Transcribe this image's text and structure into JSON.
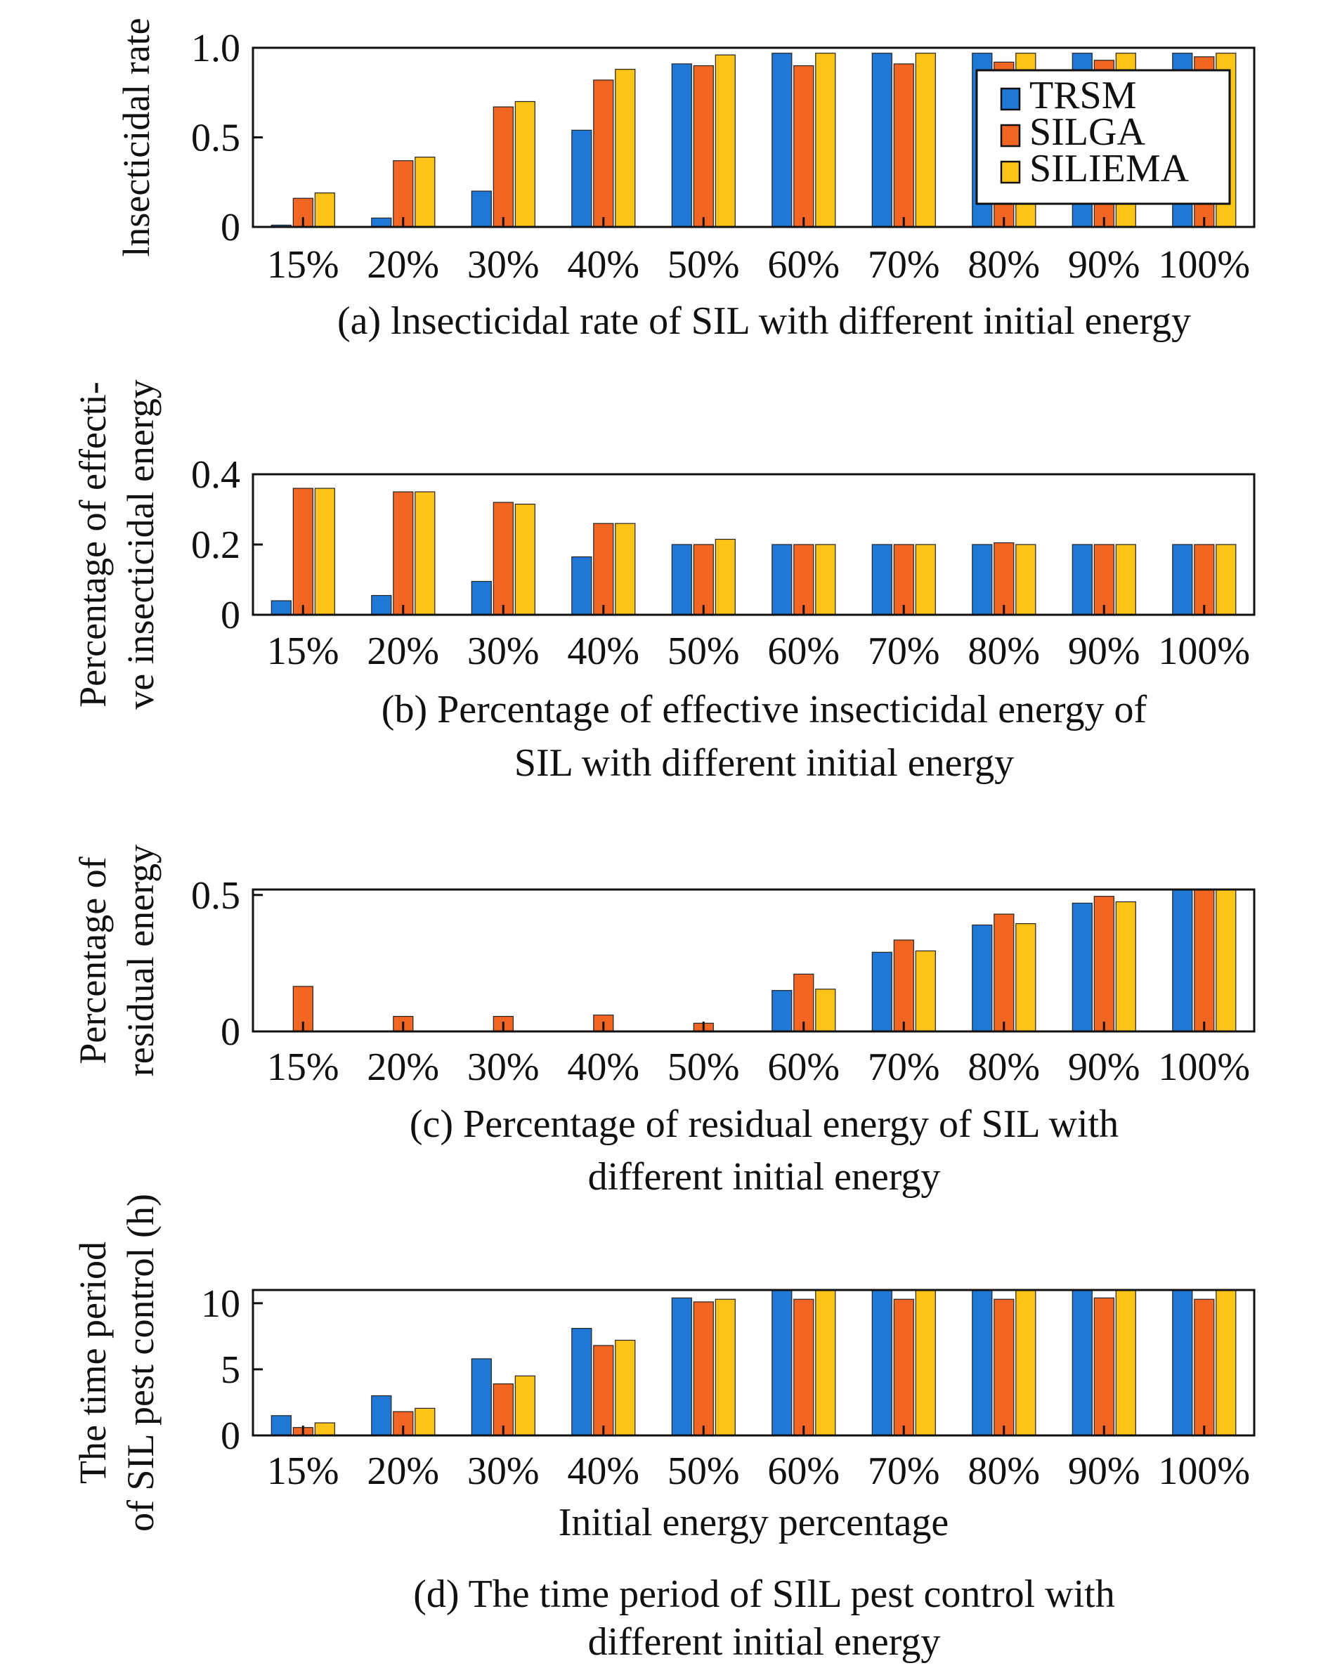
{
  "series_meta": [
    {
      "name": "TRSM",
      "color": "#1f78d6"
    },
    {
      "name": "SILGA",
      "color": "#f26522"
    },
    {
      "name": "SILIEMA",
      "color": "#fcc419"
    }
  ],
  "chart_data": [
    {
      "type": "bar",
      "categories": [
        "15%",
        "20%",
        "30%",
        "40%",
        "50%",
        "60%",
        "70%",
        "80%",
        "90%",
        "100%"
      ],
      "ylabel_lines": [
        "lnsecticidal rate"
      ],
      "caption_lines": [
        "(a) lnsecticidal rate of SIL with different initial energy"
      ],
      "xlabel": "",
      "ylim": [
        0,
        1.0
      ],
      "yticks": [
        0,
        0.5,
        1.0
      ],
      "ytick_labels": [
        "0",
        "0.5",
        "1.0"
      ],
      "legend": {
        "placement": "top-right",
        "entries": [
          "TRSM",
          "SILGA",
          "SILIEMA"
        ]
      },
      "series": [
        {
          "name": "TRSM",
          "values": [
            0.01,
            0.05,
            0.2,
            0.54,
            0.91,
            0.97,
            0.97,
            0.97,
            0.97,
            0.97
          ]
        },
        {
          "name": "SILGA",
          "values": [
            0.16,
            0.37,
            0.67,
            0.82,
            0.9,
            0.9,
            0.91,
            0.92,
            0.93,
            0.95
          ]
        },
        {
          "name": "SILIEMA",
          "values": [
            0.19,
            0.39,
            0.7,
            0.88,
            0.96,
            0.97,
            0.97,
            0.97,
            0.97,
            0.97
          ]
        }
      ]
    },
    {
      "type": "bar",
      "categories": [
        "15%",
        "20%",
        "30%",
        "40%",
        "50%",
        "60%",
        "70%",
        "80%",
        "90%",
        "100%"
      ],
      "ylabel_lines": [
        "Percentage of effecti-",
        "ve insecticidal energy"
      ],
      "caption_lines": [
        "(b) Percentage of effective insecticidal energy of",
        "SIL with different initial energy"
      ],
      "xlabel": "",
      "ylim": [
        0,
        0.4
      ],
      "yticks": [
        0,
        0.2,
        0.4
      ],
      "ytick_labels": [
        "0",
        "0.2",
        "0.4"
      ],
      "series": [
        {
          "name": "TRSM",
          "values": [
            0.04,
            0.055,
            0.095,
            0.165,
            0.2,
            0.2,
            0.2,
            0.2,
            0.2,
            0.2
          ]
        },
        {
          "name": "SILGA",
          "values": [
            0.36,
            0.35,
            0.32,
            0.26,
            0.2,
            0.2,
            0.2,
            0.205,
            0.2,
            0.2
          ]
        },
        {
          "name": "SILIEMA",
          "values": [
            0.36,
            0.35,
            0.315,
            0.26,
            0.215,
            0.2,
            0.2,
            0.2,
            0.2,
            0.2
          ]
        }
      ]
    },
    {
      "type": "bar",
      "categories": [
        "15%",
        "20%",
        "30%",
        "40%",
        "50%",
        "60%",
        "70%",
        "80%",
        "90%",
        "100%"
      ],
      "ylabel_lines": [
        "Percentage of",
        "residual energy"
      ],
      "caption_lines": [
        "(c) Percentage of residual energy of SIL with",
        "different initial energy"
      ],
      "xlabel": "",
      "ylim": [
        0,
        0.52
      ],
      "yticks": [
        0,
        0.5
      ],
      "ytick_labels": [
        "0",
        "0.5"
      ],
      "series": [
        {
          "name": "TRSM",
          "values": [
            0,
            0,
            0,
            0,
            0,
            0.15,
            0.29,
            0.39,
            0.47,
            0.53
          ]
        },
        {
          "name": "SILGA",
          "values": [
            0.165,
            0.055,
            0.055,
            0.06,
            0.03,
            0.21,
            0.335,
            0.43,
            0.495,
            0.535
          ]
        },
        {
          "name": "SILIEMA",
          "values": [
            0,
            0,
            0,
            0,
            0,
            0.155,
            0.295,
            0.395,
            0.475,
            0.53
          ]
        }
      ]
    },
    {
      "type": "bar",
      "categories": [
        "15%",
        "20%",
        "30%",
        "40%",
        "50%",
        "60%",
        "70%",
        "80%",
        "90%",
        "100%"
      ],
      "ylabel_lines": [
        "The time period",
        "of SIL pest control (h)"
      ],
      "caption_lines": [
        "(d) The time period of SIlL pest control with",
        "different initial energy"
      ],
      "xlabel": "Initial energy percentage",
      "ylim": [
        0,
        11
      ],
      "yticks": [
        0,
        5,
        10
      ],
      "ytick_labels": [
        "0",
        "5",
        "10"
      ],
      "series": [
        {
          "name": "TRSM",
          "values": [
            1.5,
            3.0,
            5.8,
            8.1,
            10.4,
            11,
            11,
            11,
            11,
            11
          ]
        },
        {
          "name": "SILGA",
          "values": [
            0.6,
            1.8,
            3.9,
            6.8,
            10.1,
            10.3,
            10.3,
            10.3,
            10.4,
            10.3
          ]
        },
        {
          "name": "SILIEMA",
          "values": [
            0.95,
            2.05,
            4.5,
            7.2,
            10.3,
            11,
            11,
            11,
            11,
            11
          ]
        }
      ]
    }
  ]
}
